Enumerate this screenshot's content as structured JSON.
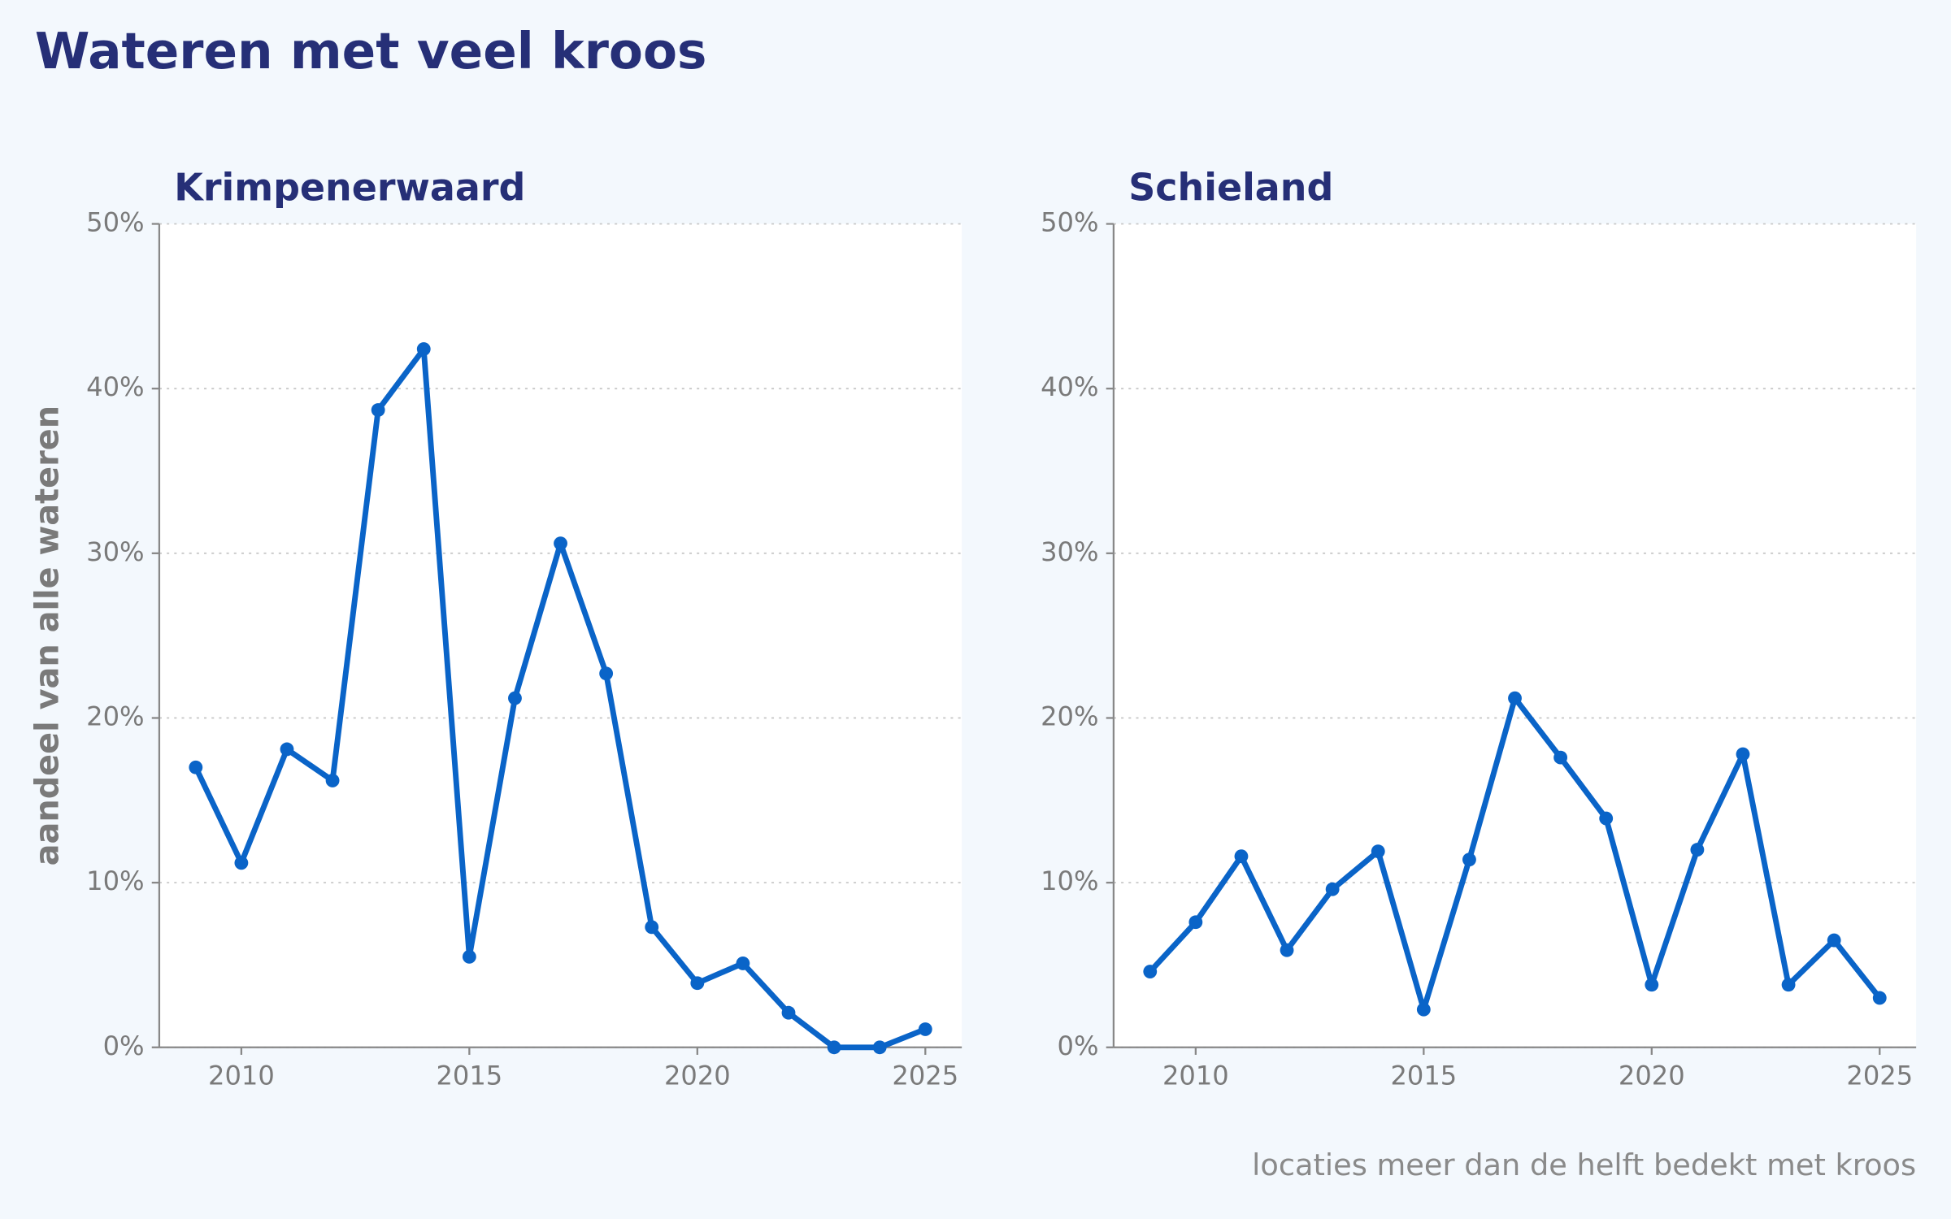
{
  "title": "Wateren met veel kroos",
  "note": "locaties meer dan de helft bedekt met kroos",
  "chart_data": [
    {
      "type": "line",
      "title": "Krimpenerwaard",
      "ylabel": "aandeel van alle wateren",
      "x": [
        2009,
        2010,
        2011,
        2012,
        2013,
        2014,
        2015,
        2016,
        2017,
        2018,
        2019,
        2020,
        2021,
        2022,
        2023,
        2024,
        2025
      ],
      "series": [
        {
          "name": "Krimpenerwaard",
          "color": "#0a64c8",
          "values": [
            17,
            11.2,
            18.1,
            16.2,
            38.7,
            42.4,
            5.5,
            21.2,
            30.6,
            22.7,
            7.3,
            3.9,
            5.1,
            2.1,
            0,
            0,
            1.1
          ]
        }
      ],
      "xlim": [
        2008.2,
        2025.8
      ],
      "xticks": [
        2010,
        2015,
        2020,
        2025
      ],
      "ylim": [
        0,
        50
      ],
      "yticks": [
        {
          "value": 0,
          "label": "0%"
        },
        {
          "value": 10,
          "label": "10%"
        },
        {
          "value": 20,
          "label": "20%"
        },
        {
          "value": 30,
          "label": "30%"
        },
        {
          "value": 40,
          "label": "40%"
        },
        {
          "value": 50,
          "label": "50%"
        }
      ],
      "grid": true
    },
    {
      "type": "line",
      "title": "Schieland",
      "x": [
        2009,
        2010,
        2011,
        2012,
        2013,
        2014,
        2015,
        2016,
        2017,
        2018,
        2019,
        2020,
        2021,
        2022,
        2023,
        2024,
        2025
      ],
      "series": [
        {
          "name": "Schieland",
          "color": "#0a64c8",
          "values": [
            4.6,
            7.6,
            11.6,
            5.9,
            9.6,
            11.9,
            2.3,
            11.4,
            21.2,
            17.6,
            13.9,
            3.8,
            12.0,
            17.8,
            3.8,
            6.5,
            3.0
          ]
        }
      ],
      "xlim": [
        2008.2,
        2025.8
      ],
      "xticks": [
        2010,
        2015,
        2020,
        2025
      ],
      "ylim": [
        0,
        50
      ],
      "yticks": [
        {
          "value": 0,
          "label": "0%"
        },
        {
          "value": 10,
          "label": "10%"
        },
        {
          "value": 20,
          "label": "20%"
        },
        {
          "value": 30,
          "label": "30%"
        },
        {
          "value": 40,
          "label": "40%"
        },
        {
          "value": 50,
          "label": "50%"
        }
      ],
      "grid": true
    }
  ]
}
